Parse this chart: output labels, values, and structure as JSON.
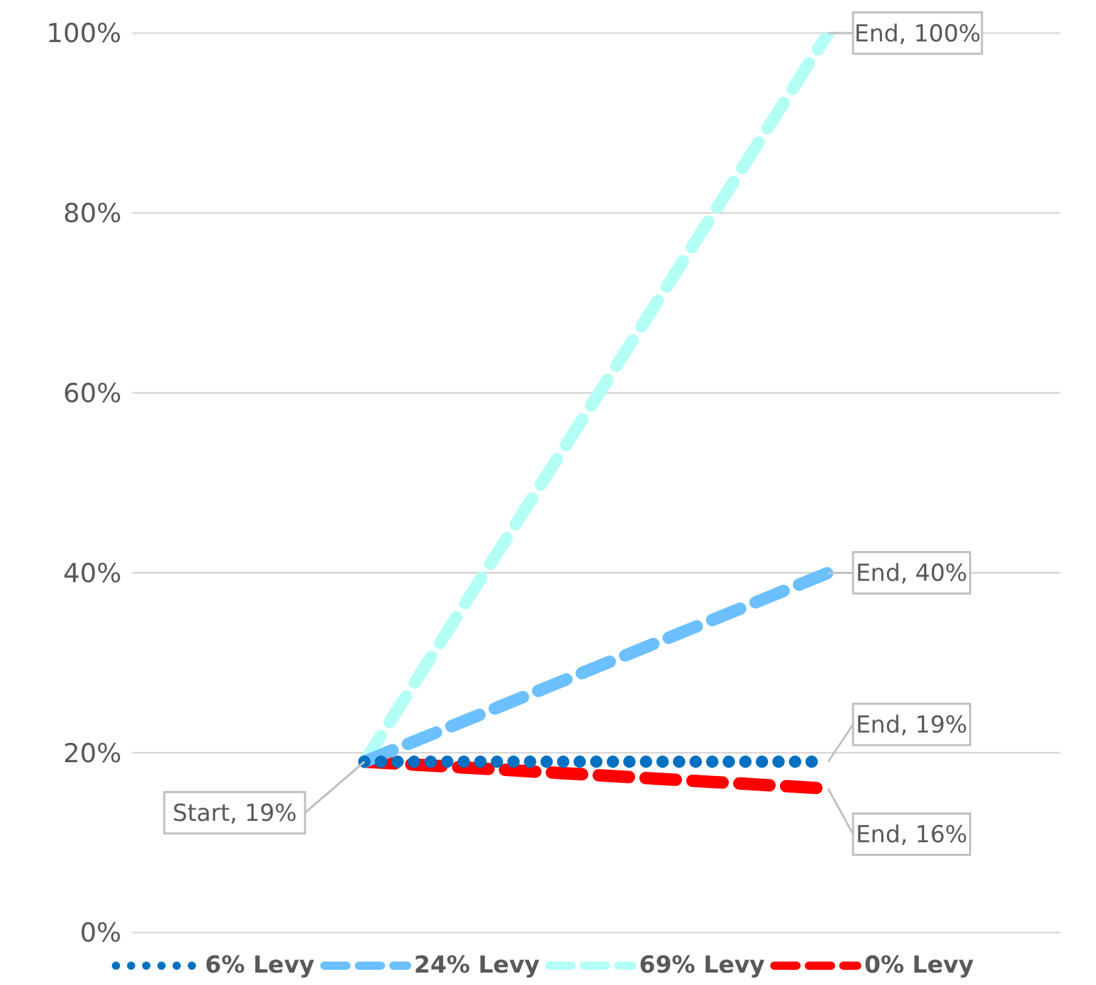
{
  "chart_data": {
    "type": "line",
    "categories": [
      null,
      null
    ],
    "series": [
      {
        "name": "6% Levy",
        "color": "#0070c0",
        "values": [
          19,
          19
        ],
        "line_style": "dotted"
      },
      {
        "name": "24% Levy",
        "color": "#6cc0ff",
        "values": [
          19,
          40
        ],
        "line_style": "dashed"
      },
      {
        "name": "69% Levy",
        "color": "#b3fff6",
        "values": [
          19,
          100
        ],
        "line_style": "dashed"
      },
      {
        "name": "0% Levy",
        "color": "#ff0000",
        "values": [
          19,
          16
        ],
        "line_style": "dashed"
      }
    ],
    "ylim": [
      0,
      100
    ],
    "yticks": [
      {
        "value": 0,
        "label": "0%"
      },
      {
        "value": 20,
        "label": "20%"
      },
      {
        "value": 40,
        "label": "40%"
      },
      {
        "value": 60,
        "label": "60%"
      },
      {
        "value": 80,
        "label": "80%"
      },
      {
        "value": 100,
        "label": "100%"
      }
    ],
    "grid": "y",
    "legend": "bottom",
    "marker": "none",
    "annotations": [
      "Start, 19%",
      "End, 19%",
      "End, 40%",
      "End, 100%",
      "End, 16%"
    ]
  }
}
